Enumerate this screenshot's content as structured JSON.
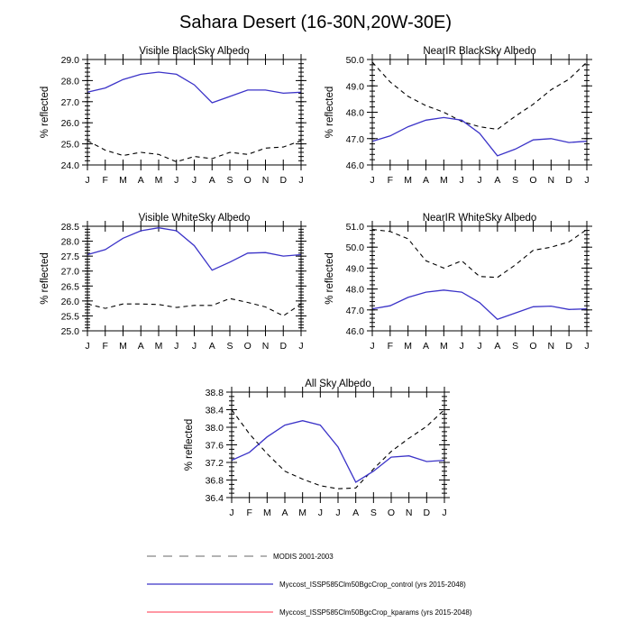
{
  "figure_title": "Sahara Desert (16-30N,20W-30E)",
  "legend": [
    {
      "label": "MODIS 2001-2003",
      "color": "#9a9a9a",
      "dash": "dashed"
    },
    {
      "label": "Myccost_ISSP585Clm50BgcCrop_control (yrs 2015-2048)",
      "color": "#3b33c8",
      "dash": "solid"
    },
    {
      "label": "Myccost_ISSP585Clm50BgcCrop_kparams (yrs 2015-2048)",
      "color": "#ff5a6e",
      "dash": "solid"
    }
  ],
  "chart_data": [
    {
      "type": "line",
      "title": "Visible BlackSky Albedo",
      "ylabel": "% reflected",
      "categories": [
        "J",
        "F",
        "M",
        "A",
        "M",
        "J",
        "J",
        "A",
        "S",
        "O",
        "N",
        "D",
        "J"
      ],
      "ylim": [
        24.0,
        29.0
      ],
      "yticks": [
        "24.0",
        "25.0",
        "26.0",
        "27.0",
        "28.0",
        "29.0"
      ],
      "yticks_minor": [
        24.0,
        24.2,
        24.4,
        24.6,
        24.8,
        25.0,
        25.2,
        25.4,
        25.6,
        25.8,
        26.0,
        26.2,
        26.4,
        26.6,
        26.8,
        27.0,
        27.2,
        27.4,
        27.6,
        27.8,
        28.0,
        28.2,
        28.4,
        28.6,
        28.8,
        29.0
      ],
      "series": [
        {
          "name": "MODIS 2001-2003",
          "color": "#000000",
          "dash": "dashed",
          "values": [
            25.15,
            24.7,
            24.45,
            24.6,
            24.5,
            24.15,
            24.4,
            24.3,
            24.6,
            24.5,
            24.8,
            24.85,
            25.15
          ]
        },
        {
          "name": "Myccost_ISSP585Clm50BgcCrop_control (yrs 2015-2048)",
          "color": "#3b33c8",
          "dash": "solid",
          "values": [
            27.45,
            27.65,
            28.05,
            28.3,
            28.4,
            28.3,
            27.8,
            26.95,
            27.25,
            27.55,
            27.55,
            27.4,
            27.45
          ]
        }
      ]
    },
    {
      "type": "line",
      "title": "NearIR BlackSky Albedo",
      "ylabel": "% reflected",
      "categories": [
        "J",
        "F",
        "M",
        "A",
        "M",
        "J",
        "J",
        "A",
        "S",
        "O",
        "N",
        "D",
        "J"
      ],
      "ylim": [
        46.0,
        50.0
      ],
      "yticks": [
        "46.0",
        "47.0",
        "48.0",
        "49.0",
        "50.0"
      ],
      "yticks_minor": [
        46.0,
        46.2,
        46.4,
        46.6,
        46.8,
        47.0,
        47.2,
        47.4,
        47.6,
        47.8,
        48.0,
        48.2,
        48.4,
        48.6,
        48.8,
        49.0,
        49.2,
        49.4,
        49.6,
        49.8,
        50.0
      ],
      "series": [
        {
          "name": "MODIS 2001-2003",
          "color": "#000000",
          "dash": "dashed",
          "values": [
            49.9,
            49.15,
            48.6,
            48.25,
            48.0,
            47.65,
            47.45,
            47.35,
            47.85,
            48.3,
            48.85,
            49.25,
            49.9
          ]
        },
        {
          "name": "Myccost_ISSP585Clm50BgcCrop_control (yrs 2015-2048)",
          "color": "#3b33c8",
          "dash": "solid",
          "values": [
            46.9,
            47.1,
            47.45,
            47.7,
            47.8,
            47.7,
            47.2,
            46.35,
            46.6,
            46.95,
            47.0,
            46.85,
            46.9
          ]
        }
      ]
    },
    {
      "type": "line",
      "title": "Visible WhiteSky Albedo",
      "ylabel": "% reflected",
      "categories": [
        "J",
        "F",
        "M",
        "A",
        "M",
        "J",
        "J",
        "A",
        "S",
        "O",
        "N",
        "D",
        "J"
      ],
      "ylim": [
        25.0,
        28.5
      ],
      "yticks": [
        "25.0",
        "25.5",
        "26.0",
        "26.5",
        "27.0",
        "27.5",
        "28.0",
        "28.5"
      ],
      "yticks_minor": [
        25.0,
        25.1,
        25.2,
        25.3,
        25.4,
        25.5,
        25.6,
        25.7,
        25.8,
        25.9,
        26.0,
        26.1,
        26.2,
        26.3,
        26.4,
        26.5,
        26.6,
        26.7,
        26.8,
        26.9,
        27.0,
        27.1,
        27.2,
        27.3,
        27.4,
        27.5,
        27.6,
        27.7,
        27.8,
        27.9,
        28.0,
        28.1,
        28.2,
        28.3,
        28.4,
        28.5
      ],
      "series": [
        {
          "name": "MODIS 2001-2003",
          "color": "#000000",
          "dash": "dashed",
          "values": [
            25.9,
            25.75,
            25.9,
            25.9,
            25.88,
            25.78,
            25.85,
            25.85,
            26.08,
            25.95,
            25.8,
            25.5,
            25.9
          ]
        },
        {
          "name": "Myccost_ISSP585Clm50BgcCrop_control (yrs 2015-2048)",
          "color": "#3b33c8",
          "dash": "solid",
          "values": [
            27.55,
            27.72,
            28.1,
            28.35,
            28.45,
            28.35,
            27.85,
            27.03,
            27.3,
            27.6,
            27.62,
            27.5,
            27.55
          ]
        }
      ]
    },
    {
      "type": "line",
      "title": "NearIR WhiteSky Albedo",
      "ylabel": "% reflected",
      "categories": [
        "J",
        "F",
        "M",
        "A",
        "M",
        "J",
        "J",
        "A",
        "S",
        "O",
        "N",
        "D",
        "J"
      ],
      "ylim": [
        46.0,
        51.0
      ],
      "yticks": [
        "46.0",
        "47.0",
        "48.0",
        "49.0",
        "50.0",
        "51.0"
      ],
      "yticks_minor": [
        46.0,
        46.2,
        46.4,
        46.6,
        46.8,
        47.0,
        47.2,
        47.4,
        47.6,
        47.8,
        48.0,
        48.2,
        48.4,
        48.6,
        48.8,
        49.0,
        49.2,
        49.4,
        49.6,
        49.8,
        50.0,
        50.2,
        50.4,
        50.6,
        50.8,
        51.0
      ],
      "series": [
        {
          "name": "MODIS 2001-2003",
          "color": "#000000",
          "dash": "dashed",
          "values": [
            50.85,
            50.75,
            50.4,
            49.35,
            49.0,
            49.35,
            48.6,
            48.55,
            49.15,
            49.85,
            50.0,
            50.25,
            50.85
          ]
        },
        {
          "name": "Myccost_ISSP585Clm50BgcCrop_control (yrs 2015-2048)",
          "color": "#3b33c8",
          "dash": "solid",
          "values": [
            47.05,
            47.2,
            47.6,
            47.85,
            47.95,
            47.85,
            47.35,
            46.55,
            46.85,
            47.15,
            47.18,
            47.02,
            47.05
          ]
        }
      ]
    },
    {
      "type": "line",
      "title": "All Sky Albedo",
      "ylabel": "% reflected",
      "categories": [
        "J",
        "F",
        "M",
        "A",
        "M",
        "J",
        "J",
        "A",
        "S",
        "O",
        "N",
        "D",
        "J"
      ],
      "ylim": [
        36.4,
        38.8
      ],
      "yticks": [
        "36.4",
        "36.8",
        "37.2",
        "37.6",
        "38.0",
        "38.4",
        "38.8"
      ],
      "yticks_minor": [
        36.4,
        36.5,
        36.6,
        36.7,
        36.8,
        36.9,
        37.0,
        37.1,
        37.2,
        37.3,
        37.4,
        37.5,
        37.6,
        37.7,
        37.8,
        37.9,
        38.0,
        38.1,
        38.2,
        38.3,
        38.4,
        38.5,
        38.6,
        38.7,
        38.8
      ],
      "series": [
        {
          "name": "MODIS 2001-2003",
          "color": "#000000",
          "dash": "dashed",
          "values": [
            38.4,
            37.85,
            37.4,
            37.0,
            36.82,
            36.67,
            36.6,
            36.62,
            37.05,
            37.45,
            37.75,
            38.02,
            38.4
          ]
        },
        {
          "name": "Myccost_ISSP585Clm50BgcCrop_control (yrs 2015-2048)",
          "color": "#3b33c8",
          "dash": "solid",
          "values": [
            37.25,
            37.43,
            37.78,
            38.05,
            38.15,
            38.05,
            37.55,
            36.75,
            37.0,
            37.32,
            37.35,
            37.22,
            37.25
          ]
        }
      ]
    }
  ]
}
